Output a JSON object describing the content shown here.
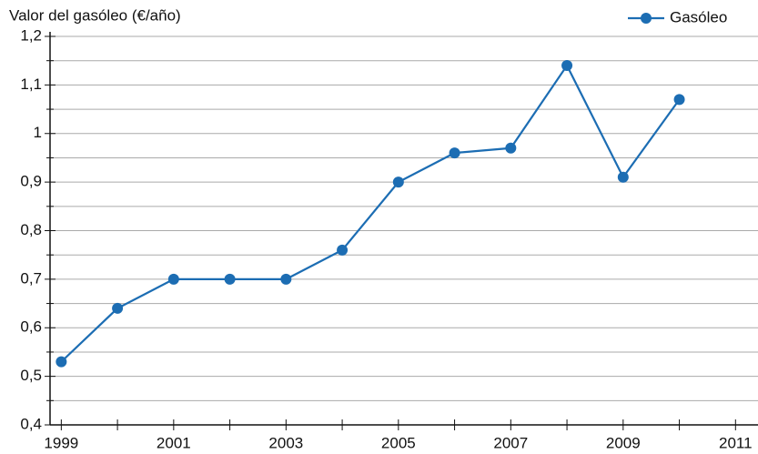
{
  "chart_data": {
    "type": "line",
    "title": "Valor del gasóleo (€/año)",
    "x": [
      1999,
      2000,
      2001,
      2002,
      2003,
      2004,
      2005,
      2006,
      2007,
      2008,
      2009,
      2010
    ],
    "series": [
      {
        "name": "Gasóleo",
        "color": "#1c6db3",
        "values": [
          0.53,
          0.64,
          0.7,
          0.7,
          0.7,
          0.76,
          0.9,
          0.96,
          0.97,
          1.14,
          0.91,
          1.07
        ]
      }
    ],
    "xlim": [
      1998.8,
      2011.4
    ],
    "xticks": [
      1999,
      2001,
      2003,
      2005,
      2007,
      2009,
      2011
    ],
    "minor_xticks": [
      2000,
      2002,
      2004,
      2006,
      2008,
      2010
    ],
    "ylim": [
      0.4,
      1.2
    ],
    "yticks": [
      {
        "value": 0.4,
        "label": "0,4"
      },
      {
        "value": 0.5,
        "label": "0,5"
      },
      {
        "value": 0.6,
        "label": "0,6"
      },
      {
        "value": 0.7,
        "label": "0,7"
      },
      {
        "value": 0.8,
        "label": "0,8"
      },
      {
        "value": 0.9,
        "label": "0,9"
      },
      1,
      {
        "value": 1.1,
        "label": "1,1"
      },
      {
        "value": 1.2,
        "label": "1,2"
      }
    ],
    "minor_yticks": [
      0.45,
      0.55,
      0.65,
      0.75,
      0.85,
      0.95,
      1.05,
      1.15
    ],
    "grid": true,
    "legend": "top-right"
  }
}
